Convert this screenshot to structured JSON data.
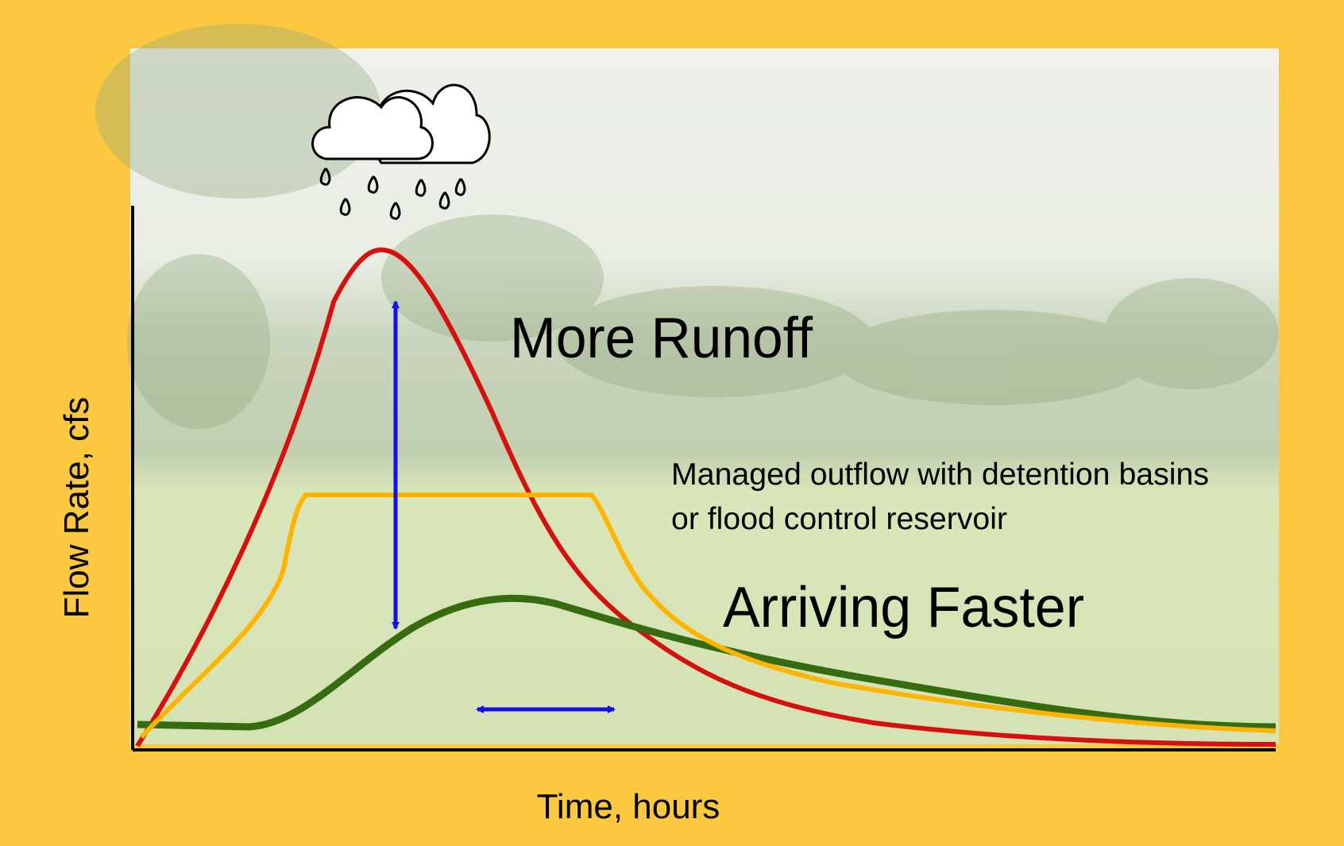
{
  "axes": {
    "y_label": "Flow Rate, cfs",
    "x_label": "Time, hours"
  },
  "annotations": {
    "more_runoff": "More Runoff",
    "managed_outflow": [
      "Managed outflow with detention basins",
      "or flood control reservoir"
    ],
    "arriving_faster": "Arriving Faster"
  }
}
